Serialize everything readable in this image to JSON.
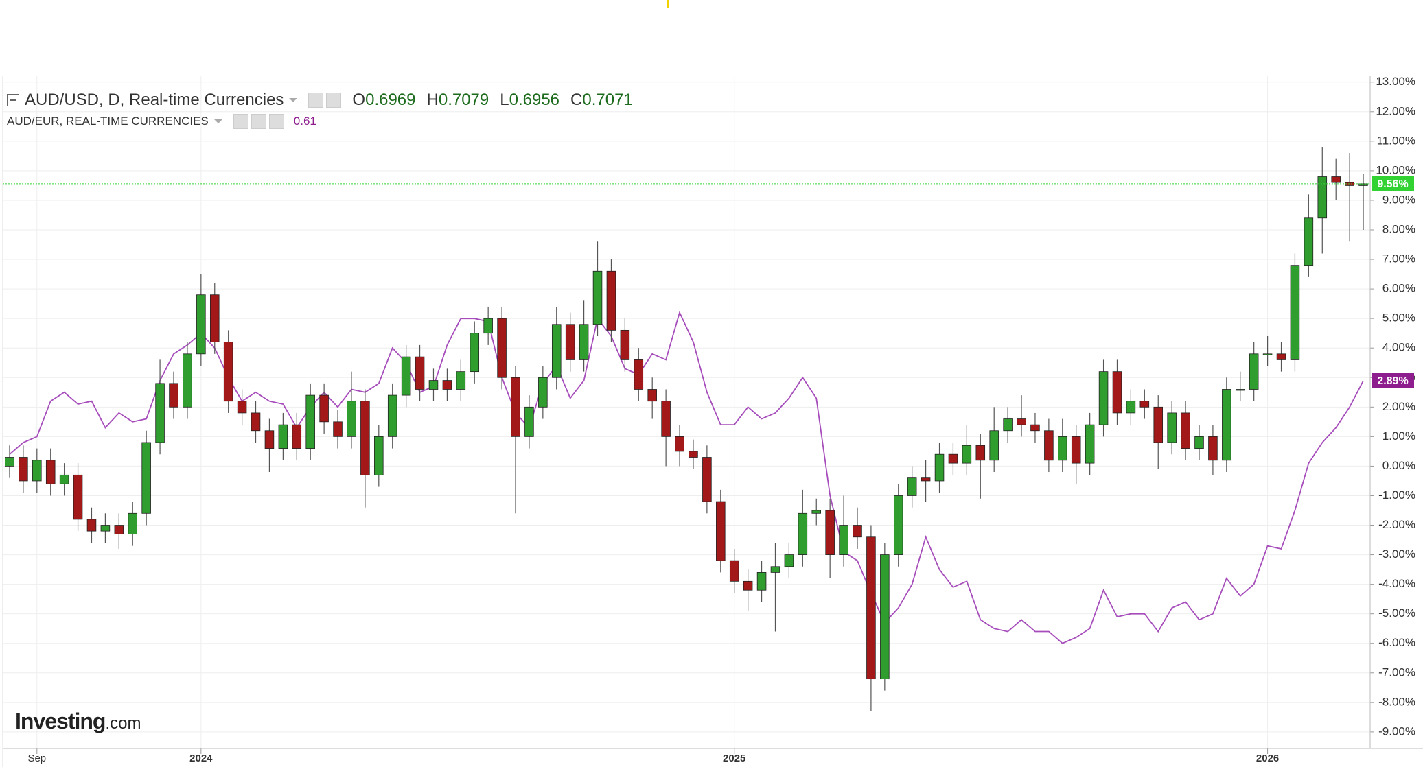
{
  "chart_data": {
    "type": "candlestick",
    "title": "AUD/USD, D, Real-time Currencies",
    "ohlc_legend": [
      {
        "label": "O",
        "value": 0.6969
      },
      {
        "label": "H",
        "value": 0.7079
      },
      {
        "label": "L",
        "value": 0.6956
      },
      {
        "label": "C",
        "value": 0.7071
      }
    ],
    "categories": [
      null,
      null,
      "Sep",
      null,
      null,
      null,
      null,
      null,
      null,
      null,
      null,
      null,
      null,
      null,
      "2024",
      null,
      null,
      null,
      null,
      null,
      null,
      null,
      null,
      null,
      null,
      null,
      null,
      null,
      null,
      null,
      null,
      null,
      null,
      null,
      null,
      null,
      null,
      null,
      null,
      null,
      null,
      null,
      null,
      null,
      null,
      null,
      null,
      null,
      null,
      null,
      null,
      null,
      null,
      "2025",
      null,
      null,
      null,
      null,
      null,
      null,
      null,
      null,
      null,
      null,
      null,
      null,
      null,
      null,
      null,
      null,
      null,
      null,
      null,
      null,
      null,
      null,
      null,
      null,
      null,
      null,
      null,
      null,
      null,
      null,
      null,
      null,
      null,
      null,
      null,
      null,
      null,
      null,
      "2026",
      null,
      null,
      null,
      null,
      null,
      null,
      null
    ],
    "open": [
      0.0,
      0.3,
      -0.5,
      0.2,
      -0.6,
      -0.3,
      -1.8,
      -2.2,
      -2.0,
      -2.3,
      -1.6,
      0.8,
      2.8,
      2.0,
      3.8,
      5.8,
      4.2,
      2.2,
      1.8,
      1.2,
      0.6,
      1.4,
      0.6,
      2.4,
      1.5,
      1.0,
      2.2,
      -0.3,
      1.0,
      2.4,
      3.7,
      2.6,
      2.9,
      2.6,
      3.2,
      4.5,
      5.0,
      3.0,
      1.0,
      2.0,
      3.0,
      4.8,
      3.6,
      4.8,
      6.6,
      4.6,
      3.6,
      2.6,
      2.2,
      1.0,
      0.5,
      0.3,
      -1.2,
      -3.2,
      -3.9,
      -4.2,
      -3.6,
      -3.4,
      -3.0,
      -1.6,
      -1.5,
      -3.0,
      -2.0,
      -2.4,
      -7.2,
      -3.0,
      -1.0,
      -0.4,
      -0.5,
      0.4,
      0.1,
      0.7,
      0.2,
      1.2,
      1.6,
      1.4,
      1.2,
      0.2,
      1.0,
      0.1,
      1.4,
      3.2,
      1.8,
      2.2,
      2.0,
      0.8,
      1.8,
      0.6,
      1.0,
      0.2,
      2.6,
      2.6,
      3.8,
      3.8,
      3.6,
      6.8,
      8.4,
      9.8,
      9.6,
      9.5
    ],
    "high": [
      0.7,
      0.7,
      0.6,
      0.6,
      0.1,
      0.1,
      -1.4,
      -1.6,
      -1.6,
      -1.2,
      1.2,
      3.6,
      3.2,
      4.2,
      6.5,
      6.2,
      4.6,
      2.6,
      2.2,
      1.6,
      1.8,
      1.8,
      2.8,
      2.8,
      1.9,
      3.2,
      2.6,
      1.4,
      2.8,
      4.1,
      4.1,
      3.3,
      3.3,
      3.6,
      4.9,
      5.4,
      5.4,
      3.4,
      2.4,
      3.4,
      5.4,
      5.2,
      5.6,
      7.6,
      7.0,
      5.0,
      4.0,
      3.0,
      2.6,
      1.4,
      0.9,
      0.7,
      -0.8,
      -2.8,
      -3.5,
      -3.2,
      -2.6,
      -2.6,
      -0.8,
      -1.1,
      -1.1,
      -1.0,
      -1.4,
      -2.0,
      -2.6,
      -0.6,
      0.0,
      0.2,
      0.8,
      0.8,
      1.4,
      1.1,
      2.0,
      2.0,
      2.4,
      1.8,
      1.6,
      1.6,
      1.4,
      1.8,
      3.6,
      3.6,
      2.6,
      2.6,
      2.4,
      2.2,
      2.2,
      1.4,
      1.4,
      3.0,
      3.2,
      4.2,
      4.4,
      4.2,
      7.2,
      9.2,
      10.8,
      10.4,
      10.6,
      9.9
    ],
    "low": [
      -0.4,
      -0.9,
      -0.9,
      -1.0,
      -1.0,
      -2.2,
      -2.6,
      -2.6,
      -2.8,
      -2.7,
      -2.0,
      0.4,
      1.6,
      1.6,
      3.4,
      3.8,
      1.8,
      1.4,
      0.8,
      -0.2,
      0.2,
      0.2,
      0.2,
      1.1,
      0.6,
      0.6,
      -1.4,
      -0.7,
      0.6,
      2.0,
      2.2,
      2.2,
      2.2,
      2.2,
      2.8,
      4.1,
      2.6,
      -1.6,
      0.6,
      1.6,
      2.6,
      3.2,
      3.2,
      4.4,
      4.2,
      3.2,
      2.2,
      1.6,
      0.0,
      0.0,
      -0.1,
      -1.6,
      -3.6,
      -4.3,
      -4.9,
      -4.6,
      -5.6,
      -3.8,
      -3.4,
      -2.0,
      -3.8,
      -3.4,
      -2.8,
      -8.3,
      -7.6,
      -3.4,
      -1.4,
      -1.2,
      -0.9,
      -0.3,
      -0.3,
      -1.1,
      -0.2,
      0.8,
      1.0,
      0.8,
      -0.2,
      -0.2,
      -0.6,
      -0.3,
      1.0,
      1.4,
      1.4,
      1.6,
      -0.1,
      0.4,
      0.2,
      0.2,
      -0.3,
      -0.2,
      2.2,
      2.2,
      3.4,
      3.2,
      3.2,
      6.4,
      7.2,
      9.0,
      7.6,
      8.0
    ],
    "close": [
      0.3,
      -0.5,
      0.2,
      -0.6,
      -0.3,
      -1.8,
      -2.2,
      -2.0,
      -2.3,
      -1.6,
      0.8,
      2.8,
      2.0,
      3.8,
      5.8,
      4.2,
      2.2,
      1.8,
      1.2,
      0.6,
      1.4,
      0.6,
      2.4,
      1.5,
      1.0,
      2.2,
      -0.3,
      1.0,
      2.4,
      3.7,
      2.6,
      2.9,
      2.6,
      3.2,
      4.5,
      5.0,
      3.0,
      1.0,
      2.0,
      3.0,
      4.8,
      3.6,
      4.8,
      6.6,
      4.6,
      3.6,
      2.6,
      2.2,
      1.0,
      0.5,
      0.3,
      -1.2,
      -3.2,
      -3.9,
      -4.2,
      -3.6,
      -3.4,
      -3.0,
      -1.6,
      -1.5,
      -3.0,
      -2.0,
      -2.4,
      -7.2,
      -3.0,
      -1.0,
      -0.4,
      -0.5,
      0.4,
      0.1,
      0.7,
      0.2,
      1.2,
      1.6,
      1.4,
      1.2,
      0.2,
      1.0,
      0.1,
      1.4,
      3.2,
      1.8,
      2.2,
      2.0,
      0.8,
      1.8,
      0.6,
      1.0,
      0.2,
      2.6,
      2.6,
      3.8,
      3.8,
      3.6,
      6.8,
      8.4,
      9.8,
      9.6,
      9.5,
      9.56
    ],
    "up_color": "#2f9e2f",
    "down_color": "#a31919",
    "last_marker": {
      "value": 9.56,
      "label": "9.56%",
      "color": "#33d233"
    },
    "overlay": {
      "type": "line",
      "name": "AUD/EUR, REAL-TIME CURRENCIES",
      "value": 0.61,
      "color": "#a64dbb",
      "values": [
        0.4,
        0.8,
        1.0,
        2.2,
        2.5,
        2.1,
        2.2,
        1.3,
        1.8,
        1.5,
        1.6,
        2.9,
        3.8,
        4.1,
        4.5,
        4.0,
        3.0,
        2.2,
        2.5,
        2.2,
        2.1,
        1.3,
        2.0,
        2.5,
        2.0,
        2.6,
        2.5,
        2.8,
        4.0,
        3.5,
        2.5,
        2.7,
        4.1,
        5.0,
        5.0,
        4.9,
        3.0,
        1.8,
        1.3,
        2.8,
        3.4,
        2.3,
        2.9,
        5.0,
        4.4,
        3.3,
        3.1,
        3.8,
        3.6,
        5.2,
        4.2,
        2.5,
        1.4,
        1.4,
        2.0,
        1.6,
        1.8,
        2.3,
        3.0,
        2.3,
        -1.0,
        -2.9,
        -3.2,
        -4.3,
        -5.3,
        -4.8,
        -4.0,
        -2.4,
        -3.5,
        -4.1,
        -3.9,
        -5.2,
        -5.5,
        -5.6,
        -5.2,
        -5.6,
        -5.6,
        -6.0,
        -5.8,
        -5.5,
        -4.2,
        -5.1,
        -5.0,
        -5.0,
        -5.6,
        -4.8,
        -4.6,
        -5.2,
        -5.0,
        -3.8,
        -4.4,
        -4.0,
        -2.7,
        -2.8,
        -1.5,
        0.1,
        0.8,
        1.3,
        2.0,
        2.89
      ],
      "last_marker": {
        "value": 2.89,
        "label": "2.89%",
        "color": "#8e1d8e"
      }
    },
    "ylim": [
      -9.56,
      13.11
    ],
    "yticks": [
      {
        "value": -9,
        "label": "-9.00%"
      },
      {
        "value": -8,
        "label": "-8.00%"
      },
      {
        "value": -7,
        "label": "-7.00%"
      },
      {
        "value": -6,
        "label": "-6.00%"
      },
      {
        "value": -5,
        "label": "-5.00%"
      },
      {
        "value": -4,
        "label": "-4.00%"
      },
      {
        "value": -3,
        "label": "-3.00%"
      },
      {
        "value": -2,
        "label": "-2.00%"
      },
      {
        "value": -1,
        "label": "-1.00%"
      },
      {
        "value": 0,
        "label": "0.00%"
      },
      {
        "value": 1,
        "label": "1.00%"
      },
      {
        "value": 2,
        "label": "2.00%"
      },
      {
        "value": 3,
        "label": "3.00%"
      },
      {
        "value": 4,
        "label": "4.00%"
      },
      {
        "value": 5,
        "label": "5.00%"
      },
      {
        "value": 6,
        "label": "6.00%"
      },
      {
        "value": 7,
        "label": "7.00%"
      },
      {
        "value": 8,
        "label": "8.00%"
      },
      {
        "value": 9,
        "label": "9.00%"
      },
      {
        "value": 10,
        "label": "10.00%"
      },
      {
        "value": 11,
        "label": "11.00%"
      },
      {
        "value": 12,
        "label": "12.00%"
      },
      {
        "value": 13,
        "label": "13.00%"
      }
    ],
    "grid": true
  },
  "watermark": [
    "Investing",
    ".com"
  ]
}
